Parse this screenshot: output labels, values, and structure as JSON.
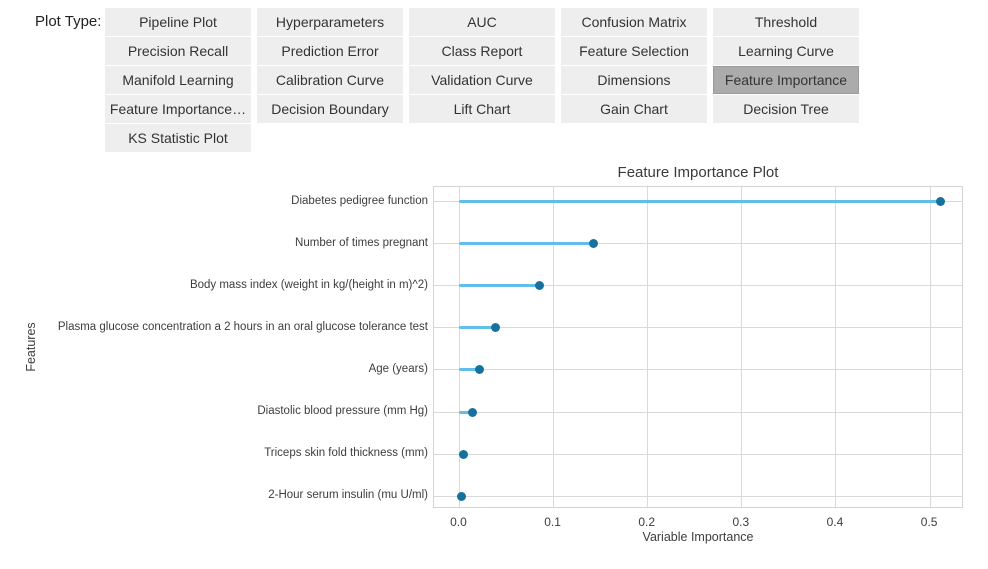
{
  "plot_type": {
    "label": "Plot Type:",
    "buttons": [
      {
        "label": "Pipeline Plot",
        "selected": false
      },
      {
        "label": "Hyperparameters",
        "selected": false
      },
      {
        "label": "AUC",
        "selected": false
      },
      {
        "label": "Confusion Matrix",
        "selected": false
      },
      {
        "label": "Threshold",
        "selected": false
      },
      {
        "label": "Precision Recall",
        "selected": false
      },
      {
        "label": "Prediction Error",
        "selected": false
      },
      {
        "label": "Class Report",
        "selected": false
      },
      {
        "label": "Feature Selection",
        "selected": false
      },
      {
        "label": "Learning Curve",
        "selected": false
      },
      {
        "label": "Manifold Learning",
        "selected": false
      },
      {
        "label": "Calibration Curve",
        "selected": false
      },
      {
        "label": "Validation Curve",
        "selected": false
      },
      {
        "label": "Dimensions",
        "selected": false
      },
      {
        "label": "Feature Importance",
        "selected": true
      },
      {
        "label": "Feature Importance…",
        "selected": false
      },
      {
        "label": "Decision Boundary",
        "selected": false
      },
      {
        "label": "Lift Chart",
        "selected": false
      },
      {
        "label": "Gain Chart",
        "selected": false
      },
      {
        "label": "Decision Tree",
        "selected": false
      },
      {
        "label": "KS Statistic Plot",
        "selected": false
      }
    ]
  },
  "chart_data": {
    "type": "scatter",
    "subtype": "horizontal-lollipop",
    "title": "Feature Importance Plot",
    "xlabel": "Variable Importance",
    "ylabel": "Features",
    "categories": [
      "Diabetes pedigree function",
      "Number of times pregnant",
      "Body mass index (weight in kg/(height in m)^2)",
      "Plasma glucose concentration a 2 hours in an oral glucose tolerance test",
      "Age (years)",
      "Diastolic blood pressure (mm Hg)",
      "Triceps skin fold thickness (mm)",
      "2-Hour serum insulin (mu U/ml)"
    ],
    "values": [
      0.511,
      0.142,
      0.085,
      0.038,
      0.021,
      0.014,
      0.004,
      0.002
    ],
    "xlim": [
      -0.027,
      0.536
    ],
    "xticks": [
      0.0,
      0.1,
      0.2,
      0.3,
      0.4,
      0.5
    ],
    "xtick_labels": [
      "0.0",
      "0.1",
      "0.2",
      "0.3",
      "0.4",
      "0.5"
    ],
    "grid": true,
    "legend": false
  },
  "colors": {
    "stem": "#62bee8",
    "dot": "#17719e",
    "button_bg": "#eeeeee",
    "selected_button_bg": "#ababab",
    "grid_line": "#d9d9d9",
    "text": "#333333"
  }
}
